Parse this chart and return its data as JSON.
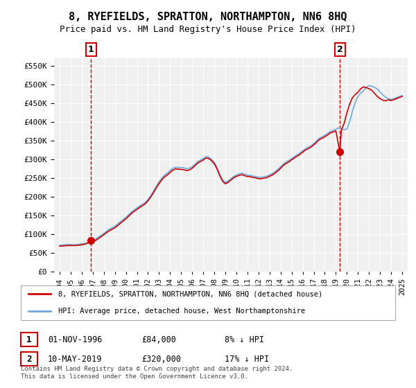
{
  "title": "8, RYEFIELDS, SPRATTON, NORTHAMPTON, NN6 8HQ",
  "subtitle": "Price paid vs. HM Land Registry's House Price Index (HPI)",
  "legend_line1": "8, RYEFIELDS, SPRATTON, NORTHAMPTON, NN6 8HQ (detached house)",
  "legend_line2": "HPI: Average price, detached house, West Northamptonshire",
  "annotation1_label": "1",
  "annotation1_date": "01-NOV-1996",
  "annotation1_price": "£84,000",
  "annotation1_hpi": "8% ↓ HPI",
  "annotation2_label": "2",
  "annotation2_date": "10-MAY-2019",
  "annotation2_price": "£320,000",
  "annotation2_hpi": "17% ↓ HPI",
  "footnote": "Contains HM Land Registry data © Crown copyright and database right 2024.\nThis data is licensed under the Open Government Licence v3.0.",
  "sale1_x": 1996.83,
  "sale1_y": 84000,
  "sale2_x": 2019.36,
  "sale2_y": 320000,
  "hpi_color": "#6fa8dc",
  "price_color": "#cc0000",
  "vline_color": "#cc0000",
  "background_chart": "#f0f0f0",
  "background_figure": "#ffffff",
  "grid_color": "#ffffff",
  "ylim_min": 0,
  "ylim_max": 570000,
  "xlim_min": 1993.5,
  "xlim_max": 2025.5,
  "yticks": [
    0,
    50000,
    100000,
    150000,
    200000,
    250000,
    300000,
    350000,
    400000,
    450000,
    500000,
    550000
  ],
  "xticks": [
    1994,
    1995,
    1996,
    1997,
    1998,
    1999,
    2000,
    2001,
    2002,
    2003,
    2004,
    2005,
    2006,
    2007,
    2008,
    2009,
    2010,
    2011,
    2012,
    2013,
    2014,
    2015,
    2016,
    2017,
    2018,
    2019,
    2020,
    2021,
    2022,
    2023,
    2024,
    2025
  ],
  "hpi_x": [
    1994.0,
    1994.25,
    1994.5,
    1994.75,
    1995.0,
    1995.25,
    1995.5,
    1995.75,
    1996.0,
    1996.25,
    1996.5,
    1996.75,
    1997.0,
    1997.25,
    1997.5,
    1997.75,
    1998.0,
    1998.25,
    1998.5,
    1998.75,
    1999.0,
    1999.25,
    1999.5,
    1999.75,
    2000.0,
    2000.25,
    2000.5,
    2000.75,
    2001.0,
    2001.25,
    2001.5,
    2001.75,
    2002.0,
    2002.25,
    2002.5,
    2002.75,
    2003.0,
    2003.25,
    2003.5,
    2003.75,
    2004.0,
    2004.25,
    2004.5,
    2004.75,
    2005.0,
    2005.25,
    2005.5,
    2005.75,
    2006.0,
    2006.25,
    2006.5,
    2006.75,
    2007.0,
    2007.25,
    2007.5,
    2007.75,
    2008.0,
    2008.25,
    2008.5,
    2008.75,
    2009.0,
    2009.25,
    2009.5,
    2009.75,
    2010.0,
    2010.25,
    2010.5,
    2010.75,
    2011.0,
    2011.25,
    2011.5,
    2011.75,
    2012.0,
    2012.25,
    2012.5,
    2012.75,
    2013.0,
    2013.25,
    2013.5,
    2013.75,
    2014.0,
    2014.25,
    2014.5,
    2014.75,
    2015.0,
    2015.25,
    2015.5,
    2015.75,
    2016.0,
    2016.25,
    2016.5,
    2016.75,
    2017.0,
    2017.25,
    2017.5,
    2017.75,
    2018.0,
    2018.25,
    2018.5,
    2018.75,
    2019.0,
    2019.25,
    2019.5,
    2019.75,
    2020.0,
    2020.25,
    2020.5,
    2020.75,
    2021.0,
    2021.25,
    2021.5,
    2021.75,
    2022.0,
    2022.25,
    2022.5,
    2022.75,
    2023.0,
    2023.25,
    2023.5,
    2023.75,
    2024.0,
    2024.25,
    2024.5,
    2024.75,
    2025.0
  ],
  "hpi_y": [
    70000,
    71000,
    72000,
    72500,
    72000,
    71500,
    72000,
    73000,
    74000,
    75000,
    77000,
    79000,
    82000,
    87000,
    92000,
    97000,
    102000,
    108000,
    113000,
    117000,
    121000,
    127000,
    133000,
    139000,
    145000,
    152000,
    159000,
    165000,
    170000,
    175000,
    180000,
    185000,
    193000,
    203000,
    215000,
    228000,
    240000,
    250000,
    258000,
    263000,
    270000,
    276000,
    279000,
    278000,
    278000,
    277000,
    275000,
    276000,
    280000,
    287000,
    294000,
    298000,
    302000,
    307000,
    306000,
    300000,
    292000,
    278000,
    260000,
    245000,
    238000,
    242000,
    248000,
    254000,
    258000,
    261000,
    263000,
    260000,
    258000,
    257000,
    255000,
    254000,
    252000,
    252000,
    253000,
    255000,
    258000,
    262000,
    267000,
    273000,
    280000,
    287000,
    293000,
    297000,
    302000,
    307000,
    312000,
    317000,
    323000,
    328000,
    332000,
    336000,
    342000,
    349000,
    356000,
    360000,
    364000,
    369000,
    374000,
    377000,
    380000,
    384000,
    382000,
    379000,
    381000,
    400000,
    428000,
    452000,
    468000,
    477000,
    483000,
    492000,
    497000,
    495000,
    492000,
    488000,
    480000,
    472000,
    466000,
    462000,
    460000,
    462000,
    465000,
    468000,
    470000
  ],
  "price_x": [
    1994.0,
    1994.25,
    1994.5,
    1994.75,
    1995.0,
    1995.25,
    1995.5,
    1995.75,
    1996.0,
    1996.25,
    1996.5,
    1996.83,
    1997.0,
    1997.25,
    1997.5,
    1997.75,
    1998.0,
    1998.25,
    1998.5,
    1998.75,
    1999.0,
    1999.25,
    1999.5,
    1999.75,
    2000.0,
    2000.25,
    2000.5,
    2000.75,
    2001.0,
    2001.25,
    2001.5,
    2001.75,
    2002.0,
    2002.25,
    2002.5,
    2002.75,
    2003.0,
    2003.25,
    2003.5,
    2003.75,
    2004.0,
    2004.25,
    2004.5,
    2004.75,
    2005.0,
    2005.25,
    2005.5,
    2005.75,
    2006.0,
    2006.25,
    2006.5,
    2006.75,
    2007.0,
    2007.25,
    2007.5,
    2007.75,
    2008.0,
    2008.25,
    2008.5,
    2008.75,
    2009.0,
    2009.25,
    2009.5,
    2009.75,
    2010.0,
    2010.25,
    2010.5,
    2010.75,
    2011.0,
    2011.25,
    2011.5,
    2011.75,
    2012.0,
    2012.25,
    2012.5,
    2012.75,
    2013.0,
    2013.25,
    2013.5,
    2013.75,
    2014.0,
    2014.25,
    2014.5,
    2014.75,
    2015.0,
    2015.25,
    2015.5,
    2015.75,
    2016.0,
    2016.25,
    2016.5,
    2016.75,
    2017.0,
    2017.25,
    2017.5,
    2017.75,
    2018.0,
    2018.25,
    2018.5,
    2018.75,
    2019.0,
    2019.36,
    2019.5,
    2019.75,
    2020.0,
    2020.25,
    2020.5,
    2020.75,
    2021.0,
    2021.25,
    2021.5,
    2021.75,
    2022.0,
    2022.25,
    2022.5,
    2022.75,
    2023.0,
    2023.25,
    2023.5,
    2023.75,
    2024.0,
    2024.25,
    2024.5,
    2024.75,
    2025.0
  ],
  "price_y": [
    68000,
    68500,
    69000,
    69500,
    69800,
    69500,
    69800,
    70500,
    71500,
    73000,
    75500,
    84000,
    79000,
    83000,
    88000,
    93000,
    98500,
    104000,
    109000,
    113000,
    117000,
    123000,
    129000,
    135000,
    141000,
    148000,
    155000,
    161000,
    166000,
    171500,
    176000,
    181000,
    189000,
    199500,
    211000,
    223500,
    235000,
    245000,
    253000,
    258000,
    265000,
    271000,
    274500,
    273500,
    273000,
    272000,
    270000,
    271500,
    276000,
    283000,
    290000,
    294000,
    298000,
    303500,
    302000,
    296000,
    288000,
    274000,
    256000,
    241500,
    234500,
    238500,
    244500,
    250500,
    254500,
    257000,
    259000,
    256000,
    254000,
    253500,
    251500,
    250500,
    248000,
    248000,
    249500,
    251000,
    254500,
    258000,
    263000,
    269000,
    276000,
    283500,
    289000,
    293000,
    298500,
    303500,
    308500,
    313000,
    319000,
    324500,
    328500,
    332500,
    338500,
    345000,
    352500,
    356000,
    360000,
    365000,
    370500,
    373000,
    376000,
    320000,
    378000,
    396000,
    424000,
    448000,
    464000,
    473000,
    479000,
    488500,
    493500,
    491500,
    488500,
    484500,
    476000,
    468000,
    462000,
    458000,
    456000,
    459000,
    457000,
    459000,
    462000,
    465000,
    468000
  ]
}
